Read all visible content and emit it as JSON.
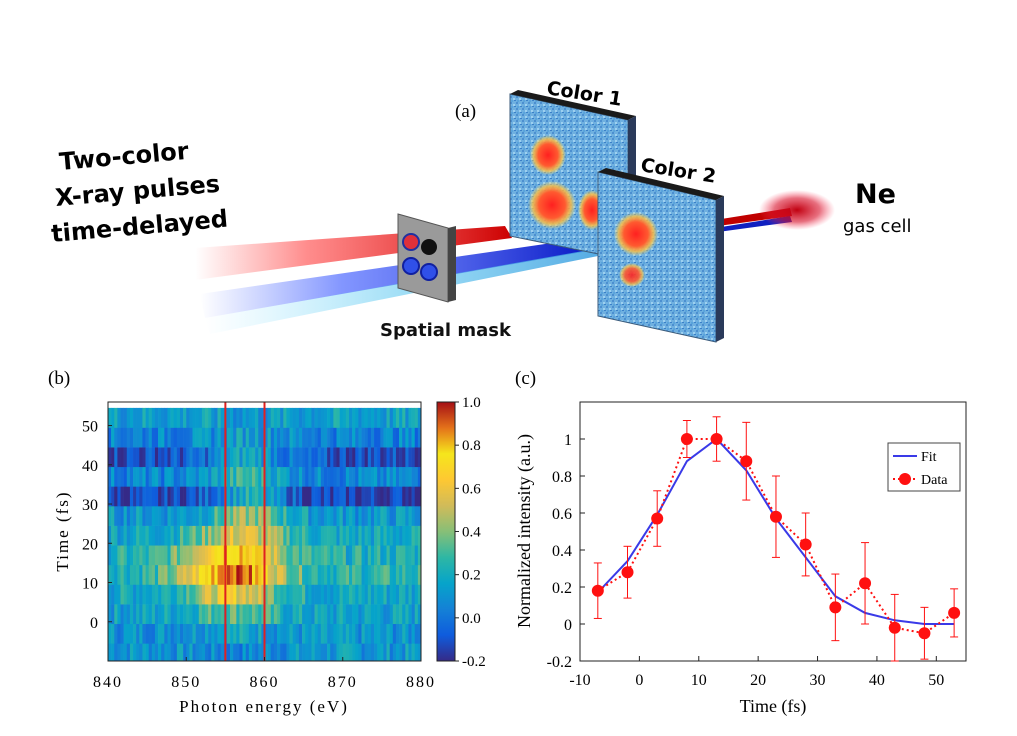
{
  "panel_a": {
    "label": "(a)",
    "pulses_line1": "Two-color",
    "pulses_line2": "X-ray pulses",
    "pulses_line3": "time-delayed",
    "mask_label": "Spatial mask",
    "screen1_label": "Color 1",
    "screen2_label": "Color 2",
    "target_label": "Ne",
    "target_sublabel": "gas cell"
  },
  "chart_data": [
    {
      "type": "heatmap",
      "panel_label": "(b)",
      "xlabel": "Photon energy (eV)",
      "ylabel": "Time (fs)",
      "xlim": [
        840,
        880
      ],
      "ylim": [
        -10,
        56
      ],
      "xticks": [
        "840",
        "850",
        "860",
        "870",
        "880"
      ],
      "yticks": [
        "0",
        "10",
        "20",
        "30",
        "40",
        "50"
      ],
      "rows_time": [
        -8,
        -3,
        2,
        7,
        12,
        17,
        22,
        27,
        32,
        37,
        42,
        47,
        52
      ],
      "row_energy_profile": [
        {
          "t": -8,
          "center": 856,
          "width": 6,
          "peak": 0.05,
          "base": 0.12
        },
        {
          "t": -3,
          "center": 856,
          "width": 6,
          "peak": 0.18,
          "base": 0.1
        },
        {
          "t": 2,
          "center": 856,
          "width": 6,
          "peak": 0.35,
          "base": 0.15
        },
        {
          "t": 7,
          "center": 856,
          "width": 6,
          "peak": 0.6,
          "base": 0.18
        },
        {
          "t": 12,
          "center": 856,
          "width": 6,
          "peak": 0.95,
          "base": 0.25
        },
        {
          "t": 17,
          "center": 856,
          "width": 6,
          "peak": 0.85,
          "base": 0.22
        },
        {
          "t": 22,
          "center": 857,
          "width": 6,
          "peak": 0.55,
          "base": 0.18
        },
        {
          "t": 27,
          "center": 858,
          "width": 5,
          "peak": 0.42,
          "base": 0.12
        },
        {
          "t": 32,
          "center": 858,
          "width": 5,
          "peak": 0.2,
          "base": -0.15
        },
        {
          "t": 37,
          "center": 858,
          "width": 5,
          "peak": 0.28,
          "base": 0.05
        },
        {
          "t": 42,
          "center": 858,
          "width": 5,
          "peak": 0.18,
          "base": -0.1
        },
        {
          "t": 47,
          "center": 858,
          "width": 5,
          "peak": 0.15,
          "base": 0.05
        },
        {
          "t": 52,
          "center": 858,
          "width": 5,
          "peak": 0.12,
          "base": 0.15
        }
      ],
      "vertical_lines_eV": [
        855,
        860
      ],
      "colorbar": {
        "min": -0.2,
        "max": 1.0,
        "ticks": [
          "1.0",
          "0.8",
          "0.6",
          "0.4",
          "0.2",
          "0.0",
          "-0.2"
        ],
        "colormap": "parula"
      }
    },
    {
      "type": "line",
      "panel_label": "(c)",
      "xlabel": "Time (fs)",
      "ylabel": "Normalized intensity (a.u.)",
      "xlim": [
        -10,
        55
      ],
      "ylim": [
        -0.2,
        1.2
      ],
      "xticks": [
        "-10",
        "0",
        "10",
        "20",
        "30",
        "40",
        "50"
      ],
      "yticks": [
        "-0.2",
        "0",
        "0.2",
        "0.4",
        "0.6",
        "0.8",
        "1"
      ],
      "series": [
        {
          "name": "Fit",
          "style": "solid",
          "color": "#3a3ae8",
          "x": [
            -7,
            -2,
            3,
            8,
            13,
            18,
            23,
            28,
            33,
            38,
            43,
            48,
            53
          ],
          "y": [
            0.17,
            0.34,
            0.59,
            0.88,
            1.0,
            0.83,
            0.57,
            0.36,
            0.15,
            0.06,
            0.02,
            0.0,
            0.0
          ]
        },
        {
          "name": "Data",
          "style": "dotted-markers",
          "color": "#ff1010",
          "x": [
            -7,
            -2,
            3,
            8,
            13,
            18,
            23,
            28,
            33,
            38,
            43,
            48,
            53
          ],
          "y": [
            0.18,
            0.28,
            0.57,
            1.0,
            1.0,
            0.88,
            0.58,
            0.43,
            0.09,
            0.22,
            -0.02,
            -0.05,
            0.06
          ],
          "err": [
            0.15,
            0.14,
            0.15,
            0.1,
            0.12,
            0.21,
            0.22,
            0.17,
            0.18,
            0.22,
            0.18,
            0.14,
            0.13
          ]
        }
      ],
      "legend": {
        "position": "right",
        "entries": [
          "Fit",
          "Data"
        ]
      }
    }
  ]
}
